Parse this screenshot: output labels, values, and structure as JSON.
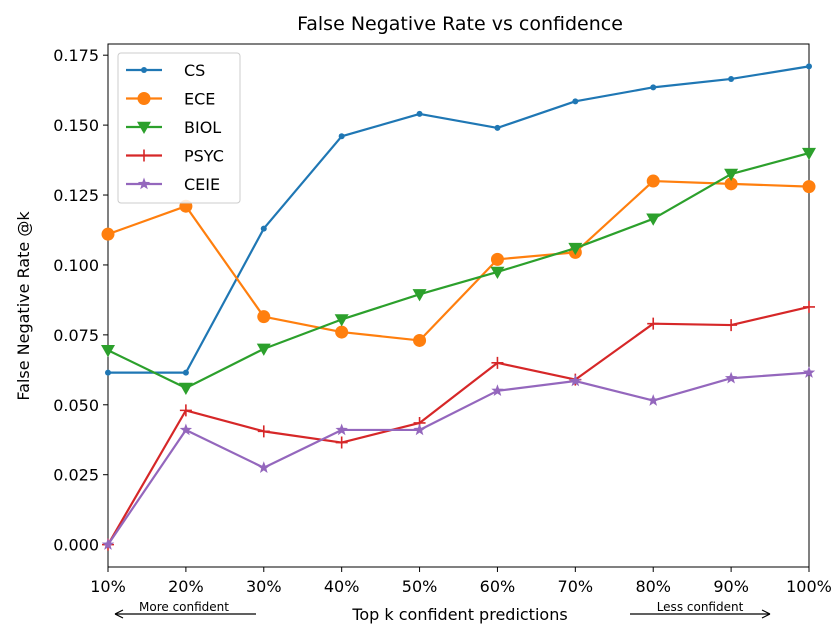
{
  "chart_data": {
    "type": "line",
    "title": "False Negative Rate vs confidence",
    "xlabel": "Top k confident predictions",
    "ylabel": "False Negative Rate @k",
    "categories": [
      "10%",
      "20%",
      "30%",
      "40%",
      "50%",
      "60%",
      "70%",
      "80%",
      "90%",
      "100%"
    ],
    "x": [
      10,
      20,
      30,
      40,
      50,
      60,
      70,
      80,
      90,
      100
    ],
    "xlim": [
      10,
      100
    ],
    "ylim": [
      -0.008,
      0.179
    ],
    "yticks": [
      0.0,
      0.025,
      0.05,
      0.075,
      0.1,
      0.125,
      0.15,
      0.175
    ],
    "ytick_labels": [
      "0.000",
      "0.025",
      "0.050",
      "0.075",
      "0.100",
      "0.125",
      "0.150",
      "0.175"
    ],
    "grid": false,
    "legend_position": "top-left",
    "series": [
      {
        "name": "CS",
        "color": "#1f77b4",
        "marker": "dot",
        "values": [
          0.0615,
          0.0615,
          0.113,
          0.146,
          0.154,
          0.149,
          0.1585,
          0.1635,
          0.1665,
          0.171
        ]
      },
      {
        "name": "ECE",
        "color": "#ff7f0e",
        "marker": "circle",
        "values": [
          0.111,
          0.121,
          0.0815,
          0.076,
          0.073,
          0.102,
          0.1045,
          0.13,
          0.129,
          0.128
        ]
      },
      {
        "name": "BIOL",
        "color": "#2ca02c",
        "marker": "triangle-down",
        "values": [
          0.0695,
          0.056,
          0.07,
          0.0805,
          0.0895,
          0.0975,
          0.106,
          0.1165,
          0.1325,
          0.14
        ]
      },
      {
        "name": "PSYC",
        "color": "#d62728",
        "marker": "plus",
        "values": [
          0.0,
          0.048,
          0.0405,
          0.0365,
          0.0435,
          0.065,
          0.059,
          0.079,
          0.0785,
          0.085
        ]
      },
      {
        "name": "CEIE",
        "color": "#9467bd",
        "marker": "star",
        "values": [
          0.0,
          0.041,
          0.0275,
          0.041,
          0.041,
          0.055,
          0.0585,
          0.0515,
          0.0595,
          0.0615
        ]
      }
    ],
    "annotations": {
      "left": "More confident",
      "right": "Less confident"
    }
  }
}
